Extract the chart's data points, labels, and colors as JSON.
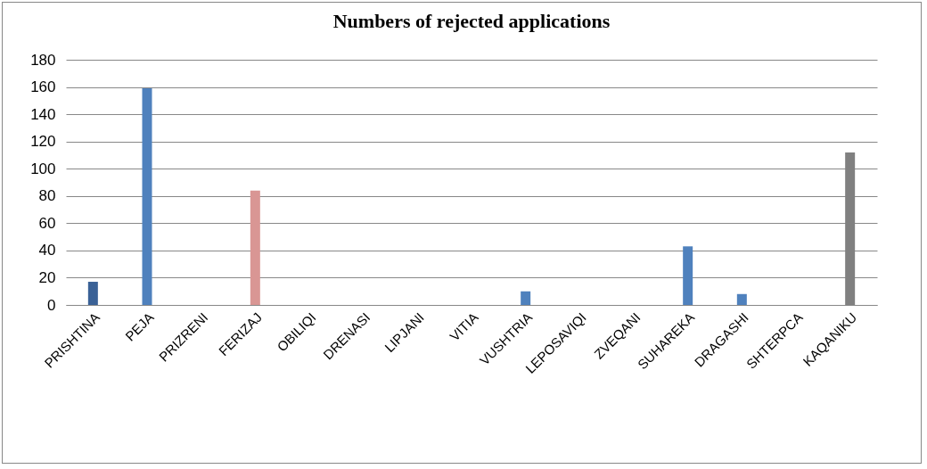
{
  "chart_data": {
    "type": "bar",
    "title": "Numbers of rejected applications",
    "categories": [
      "PRISHTINA",
      "PEJA",
      "PRIZRENI",
      "FERIZAJ",
      "OBILIQI",
      "DRENASI",
      "LIPJANI",
      "VITIA",
      "VUSHTRIA",
      "LEPOSAVIQI",
      "ZVEQANI",
      "SUHAREKA",
      "DRAGASHI",
      "SHTERPCA",
      "KAQANIKU"
    ],
    "values": [
      17,
      159,
      0,
      84,
      0,
      0,
      0,
      0,
      10,
      0,
      0,
      43,
      8,
      0,
      112
    ],
    "colors": [
      "#3a6196",
      "#4f81bd",
      "#4f81bd",
      "#d99694",
      "#4f81bd",
      "#4f81bd",
      "#4f81bd",
      "#4f81bd",
      "#4f81bd",
      "#4f81bd",
      "#4f81bd",
      "#4f81bd",
      "#4f81bd",
      "#4f81bd",
      "#808080"
    ],
    "ylim": [
      0,
      180
    ],
    "yticks": [
      0,
      20,
      40,
      60,
      80,
      100,
      120,
      140,
      160,
      180
    ],
    "grid": "y",
    "legend": false
  }
}
